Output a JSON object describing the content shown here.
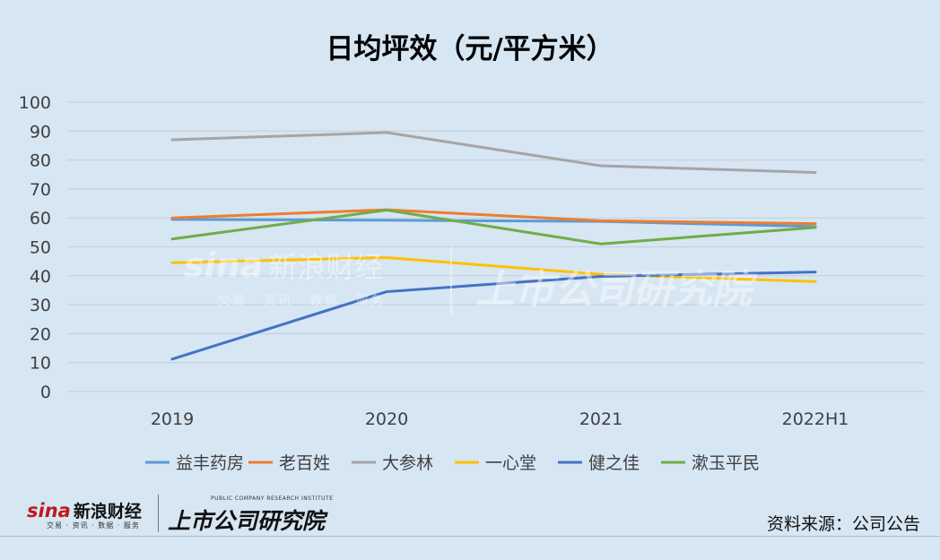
{
  "chart_data": {
    "type": "line",
    "title": "日均坪效（元/平方米）",
    "categories": [
      "2019",
      "2020",
      "2021",
      "2022H1"
    ],
    "ylim": [
      0,
      100
    ],
    "yticks": [
      0,
      10,
      20,
      30,
      40,
      50,
      60,
      70,
      80,
      90,
      100
    ],
    "grid": true,
    "legend_position": "bottom",
    "series": [
      {
        "name": "益丰药房",
        "color": "#5b9bd5",
        "values": [
          59.5,
          59.2,
          58.8,
          57.0
        ]
      },
      {
        "name": "老百姓",
        "color": "#ed7d31",
        "values": [
          60.0,
          62.8,
          59.0,
          58.0
        ]
      },
      {
        "name": "大参林",
        "color": "#a5a5a5",
        "values": [
          87.0,
          89.5,
          78.0,
          75.7
        ]
      },
      {
        "name": "一心堂",
        "color": "#ffc000",
        "values": [
          44.5,
          46.3,
          40.5,
          38.0
        ]
      },
      {
        "name": "健之佳",
        "color": "#4472c4",
        "values": [
          11.2,
          34.5,
          39.8,
          41.3
        ]
      },
      {
        "name": "漱玉平民",
        "color": "#70ad47",
        "values": [
          52.7,
          62.7,
          51.0,
          56.7
        ]
      }
    ]
  },
  "source": "资料来源：公司公告",
  "watermark": {
    "brand": "sina",
    "brand_cn": "新浪财经",
    "sub": "交易 · 资讯 · 数据 · 服务",
    "institute": "上市公司研究院"
  },
  "footer_logo": {
    "brand": "sina",
    "brand_cn": "新浪财经",
    "sub": "交易 · 资讯 · 数据 · 服务",
    "institute_en": "PUBLIC COMPANY RESEARCH INSTITUTE",
    "institute": "上市公司研究院"
  }
}
